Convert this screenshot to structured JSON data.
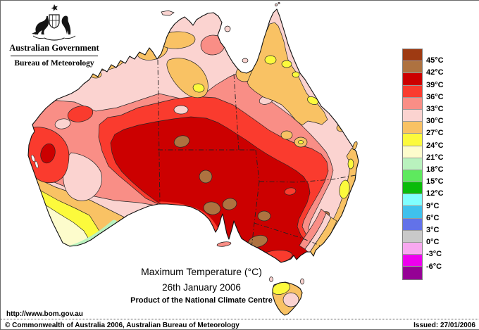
{
  "header": {
    "government": "Australian Government",
    "bureau": "Bureau of Meteorology"
  },
  "titles": {
    "main": "Maximum Temperature (°C)",
    "date": "26th January 2006",
    "product": "Product of the National Climate Centre"
  },
  "footer": {
    "url": "http://www.bom.gov.au",
    "copyright": "© Commonwealth of Australia 2006, Australian Bureau of Meteorology",
    "issued": "Issued: 27/01/2006"
  },
  "legend": {
    "labels": [
      "45°C",
      "42°C",
      "39°C",
      "36°C",
      "33°C",
      "30°C",
      "27°C",
      "24°C",
      "21°C",
      "18°C",
      "15°C",
      "12°C",
      "9°C",
      "6°C",
      "3°C",
      "0°C",
      "-3°C",
      "-6°C"
    ],
    "colors": [
      "#9E3A12",
      "#AE7240",
      "#CC0000",
      "#FA3B2E",
      "#F98E86",
      "#FBD3D0",
      "#F9C264",
      "#FCFA3C",
      "#FDFCCC",
      "#B9F2BE",
      "#5EE95E",
      "#0ABB0A",
      "#80FFFF",
      "#3FC1ED",
      "#6272E9",
      "#C9C9C9",
      "#F8A8F0",
      "#EE00EE",
      "#950195"
    ]
  },
  "palette": {
    "t45": "#9E3A12",
    "t42": "#AE7240",
    "t39": "#CC0000",
    "t36": "#FA3B2E",
    "t33": "#F98E86",
    "t30": "#FBD3D0",
    "t27": "#F9C264",
    "t24": "#FCFA3C",
    "t21": "#FDFCCC",
    "t18": "#B9F2BE",
    "sea": "#FFFFFF"
  }
}
